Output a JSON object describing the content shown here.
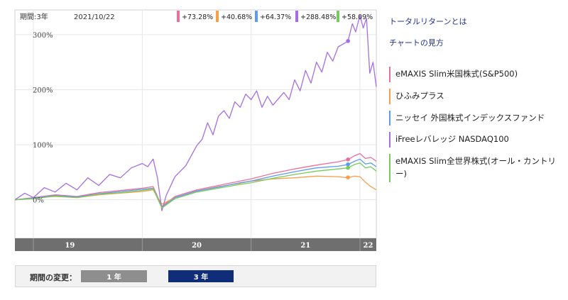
{
  "chart_header": {
    "period_label": "期間:3年",
    "date": "2021/10/22"
  },
  "returns": [
    {
      "text": "+73.28%",
      "color": "#ee6e99"
    },
    {
      "text": "+40.68%",
      "color": "#f5a04c"
    },
    {
      "text": "+64.37%",
      "color": "#5d9af2"
    },
    {
      "text": "+288.48%",
      "color": "#a56ee3"
    },
    {
      "text": "+58.09%",
      "color": "#75cc5a"
    }
  ],
  "links": {
    "total_return": "トータルリターンとは",
    "how_to_read": "チャートの見方"
  },
  "legend": [
    {
      "label": "eMAXIS Slim米国株式(S&P500)",
      "color": "#ee6e99"
    },
    {
      "label": "ひふみプラス",
      "color": "#f5a04c"
    },
    {
      "label": "ニッセイ 外国株式インデックスファンド",
      "color": "#5d9af2"
    },
    {
      "label": "iFreeレバレッジ NASDAQ100",
      "color": "#a56ee3"
    },
    {
      "label": "eMAXIS Slim全世界株式(オール・カントリー)",
      "color": "#75cc5a"
    }
  ],
  "period_selector": {
    "label": "期間の変更：",
    "btn_1y": "1 年",
    "btn_3y": "3 年"
  },
  "chart_data": {
    "type": "line",
    "x_labels": [
      "19",
      "20",
      "21",
      "22"
    ],
    "y_ticks": [
      "0%",
      "100%",
      "200%",
      "300%"
    ],
    "ylim": [
      -70,
      345
    ],
    "x_range": [
      2018.83,
      2022.15
    ],
    "grid": true,
    "series": [
      {
        "name": "eMAXIS Slim米国株式(S&P500)",
        "color": "#ee6e99",
        "points": [
          [
            2018.83,
            0
          ],
          [
            2019.0,
            4
          ],
          [
            2019.2,
            9
          ],
          [
            2019.4,
            6
          ],
          [
            2019.6,
            13
          ],
          [
            2019.8,
            17
          ],
          [
            2020.0,
            21
          ],
          [
            2020.1,
            24
          ],
          [
            2020.18,
            -12
          ],
          [
            2020.3,
            6
          ],
          [
            2020.5,
            18
          ],
          [
            2020.7,
            26
          ],
          [
            2020.9,
            34
          ],
          [
            2021.0,
            38
          ],
          [
            2021.2,
            48
          ],
          [
            2021.4,
            56
          ],
          [
            2021.6,
            63
          ],
          [
            2021.8,
            69
          ],
          [
            2021.89,
            73
          ],
          [
            2021.95,
            80
          ],
          [
            2022.0,
            84
          ],
          [
            2022.05,
            75
          ],
          [
            2022.1,
            77
          ],
          [
            2022.15,
            70
          ]
        ]
      },
      {
        "name": "ひふみプラス",
        "color": "#f5a04c",
        "points": [
          [
            2018.83,
            0
          ],
          [
            2019.0,
            3
          ],
          [
            2019.2,
            6
          ],
          [
            2019.4,
            4
          ],
          [
            2019.6,
            9
          ],
          [
            2019.8,
            12
          ],
          [
            2020.0,
            15
          ],
          [
            2020.1,
            18
          ],
          [
            2020.18,
            -8
          ],
          [
            2020.3,
            4
          ],
          [
            2020.5,
            16
          ],
          [
            2020.7,
            24
          ],
          [
            2020.9,
            30
          ],
          [
            2021.0,
            34
          ],
          [
            2021.2,
            38
          ],
          [
            2021.4,
            40
          ],
          [
            2021.6,
            43
          ],
          [
            2021.8,
            42
          ],
          [
            2021.89,
            40
          ],
          [
            2021.95,
            43
          ],
          [
            2022.0,
            42
          ],
          [
            2022.05,
            32
          ],
          [
            2022.1,
            24
          ],
          [
            2022.15,
            18
          ]
        ]
      },
      {
        "name": "ニッセイ 外国株式インデックスファンド",
        "color": "#5d9af2",
        "points": [
          [
            2018.83,
            0
          ],
          [
            2019.0,
            3
          ],
          [
            2019.2,
            8
          ],
          [
            2019.4,
            5
          ],
          [
            2019.6,
            11
          ],
          [
            2019.8,
            15
          ],
          [
            2020.0,
            19
          ],
          [
            2020.1,
            21
          ],
          [
            2020.18,
            -14
          ],
          [
            2020.3,
            4
          ],
          [
            2020.5,
            16
          ],
          [
            2020.7,
            23
          ],
          [
            2020.9,
            31
          ],
          [
            2021.0,
            34
          ],
          [
            2021.2,
            43
          ],
          [
            2021.4,
            51
          ],
          [
            2021.6,
            58
          ],
          [
            2021.8,
            61
          ],
          [
            2021.89,
            64
          ],
          [
            2021.95,
            70
          ],
          [
            2022.0,
            74
          ],
          [
            2022.05,
            65
          ],
          [
            2022.1,
            67
          ],
          [
            2022.15,
            60
          ]
        ]
      },
      {
        "name": "iFreeレバレッジ NASDAQ100",
        "color": "#a56ee3",
        "points": [
          [
            2018.83,
            0
          ],
          [
            2018.92,
            12
          ],
          [
            2019.0,
            4
          ],
          [
            2019.1,
            22
          ],
          [
            2019.2,
            14
          ],
          [
            2019.3,
            30
          ],
          [
            2019.4,
            18
          ],
          [
            2019.5,
            40
          ],
          [
            2019.6,
            26
          ],
          [
            2019.7,
            46
          ],
          [
            2019.8,
            40
          ],
          [
            2019.9,
            58
          ],
          [
            2020.0,
            66
          ],
          [
            2020.05,
            60
          ],
          [
            2020.1,
            74
          ],
          [
            2020.14,
            40
          ],
          [
            2020.18,
            -20
          ],
          [
            2020.22,
            8
          ],
          [
            2020.3,
            42
          ],
          [
            2020.4,
            62
          ],
          [
            2020.5,
            98
          ],
          [
            2020.55,
            110
          ],
          [
            2020.6,
            140
          ],
          [
            2020.65,
            118
          ],
          [
            2020.7,
            152
          ],
          [
            2020.75,
            162
          ],
          [
            2020.8,
            148
          ],
          [
            2020.85,
            178
          ],
          [
            2020.9,
            168
          ],
          [
            2020.95,
            192
          ],
          [
            2021.0,
            182
          ],
          [
            2021.05,
            198
          ],
          [
            2021.1,
            168
          ],
          [
            2021.15,
            188
          ],
          [
            2021.2,
            172
          ],
          [
            2021.3,
            195
          ],
          [
            2021.35,
            182
          ],
          [
            2021.4,
            218
          ],
          [
            2021.45,
            198
          ],
          [
            2021.5,
            235
          ],
          [
            2021.55,
            212
          ],
          [
            2021.6,
            250
          ],
          [
            2021.65,
            232
          ],
          [
            2021.7,
            268
          ],
          [
            2021.75,
            252
          ],
          [
            2021.8,
            278
          ],
          [
            2021.89,
            288
          ],
          [
            2021.93,
            320
          ],
          [
            2021.96,
            305
          ],
          [
            2022.0,
            335
          ],
          [
            2022.03,
            312
          ],
          [
            2022.06,
            330
          ],
          [
            2022.09,
            230
          ],
          [
            2022.12,
            250
          ],
          [
            2022.15,
            205
          ]
        ]
      },
      {
        "name": "eMAXIS Slim全世界株式(オール・カントリー)",
        "color": "#75cc5a",
        "points": [
          [
            2018.83,
            0
          ],
          [
            2019.0,
            2
          ],
          [
            2019.2,
            7
          ],
          [
            2019.4,
            4
          ],
          [
            2019.6,
            10
          ],
          [
            2019.8,
            13
          ],
          [
            2020.0,
            17
          ],
          [
            2020.1,
            20
          ],
          [
            2020.18,
            -15
          ],
          [
            2020.3,
            2
          ],
          [
            2020.5,
            14
          ],
          [
            2020.7,
            21
          ],
          [
            2020.9,
            28
          ],
          [
            2021.0,
            31
          ],
          [
            2021.2,
            39
          ],
          [
            2021.4,
            46
          ],
          [
            2021.6,
            52
          ],
          [
            2021.8,
            56
          ],
          [
            2021.89,
            58
          ],
          [
            2021.95,
            64
          ],
          [
            2022.0,
            67
          ],
          [
            2022.05,
            58
          ],
          [
            2022.1,
            60
          ],
          [
            2022.15,
            52
          ]
        ]
      }
    ],
    "markers": [
      {
        "series": 0,
        "x": 2021.89,
        "y": 73.28
      },
      {
        "series": 1,
        "x": 2021.89,
        "y": 40.68
      },
      {
        "series": 2,
        "x": 2021.89,
        "y": 64.37
      },
      {
        "series": 3,
        "x": 2021.89,
        "y": 288.48
      },
      {
        "series": 4,
        "x": 2021.89,
        "y": 58.09
      }
    ]
  }
}
